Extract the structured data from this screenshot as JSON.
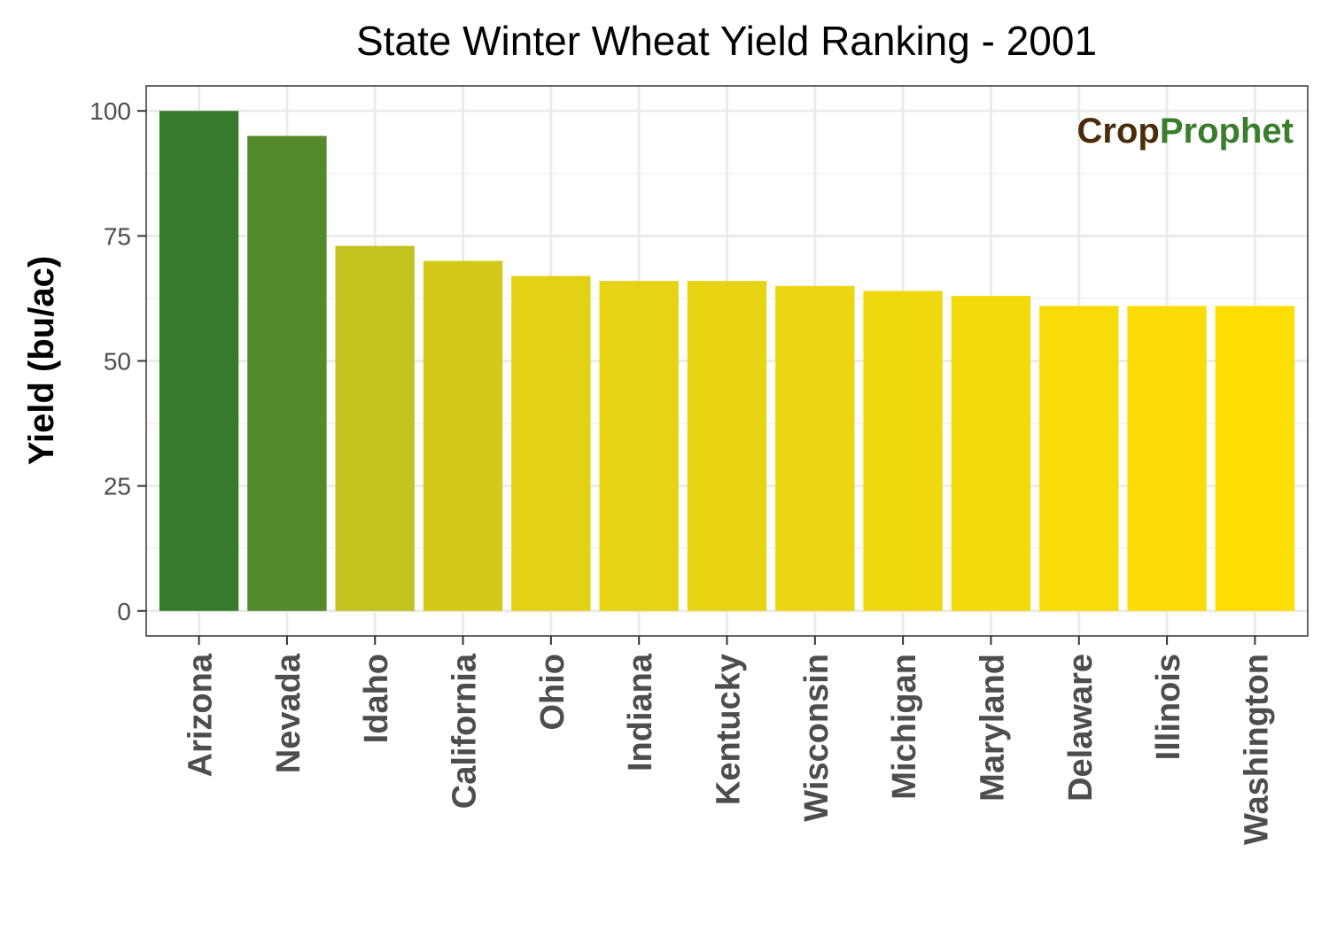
{
  "chart_data": {
    "type": "bar",
    "title": "State Winter Wheat Yield Ranking - 2001",
    "xlabel": "",
    "ylabel": "Yield (bu/ac)",
    "categories": [
      "Arizona",
      "Nevada",
      "Idaho",
      "California",
      "Ohio",
      "Indiana",
      "Kentucky",
      "Wisconsin",
      "Michigan",
      "Maryland",
      "Delaware",
      "Illinois",
      "Washington"
    ],
    "values": [
      100,
      95,
      73,
      70,
      67,
      66,
      66,
      65,
      64,
      63,
      61,
      61,
      61
    ],
    "bar_colors": [
      "#367a2c",
      "#538a2c",
      "#c4c21e",
      "#d4c91a",
      "#e3d116",
      "#e6d314",
      "#e8d412",
      "#ecd611",
      "#f0d80e",
      "#f3da0b",
      "#f8dc07",
      "#fbdd05",
      "#fede02"
    ],
    "ylim": [
      0,
      100
    ],
    "yticks": [
      0,
      25,
      50,
      75,
      100
    ],
    "grid": true,
    "legend": "none"
  },
  "logo": {
    "part1": "Crop",
    "part2": "Prophet",
    "color1": "#4a2c0a",
    "color2": "#3a7d2c"
  }
}
